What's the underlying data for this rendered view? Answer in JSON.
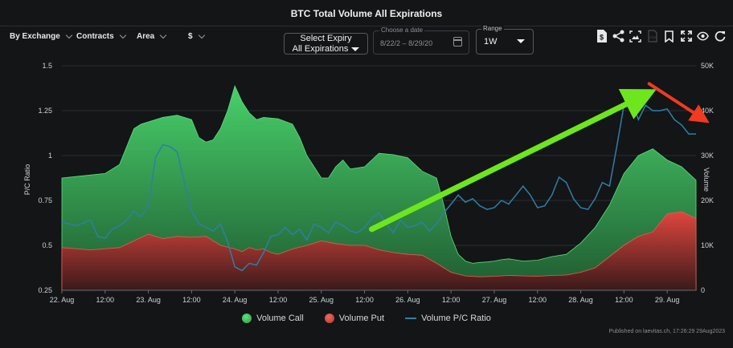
{
  "header": {
    "title": "BTC Total Volume All Expirations"
  },
  "filters": [
    {
      "label": "By Exchange"
    },
    {
      "label": "Contracts"
    },
    {
      "label": "Area"
    },
    {
      "label": "$"
    }
  ],
  "expiry": {
    "line1": "Select Expiry",
    "line2": "All Expirations"
  },
  "date_picker": {
    "legend": "Choose a date",
    "start": "8/22/2",
    "separator": "–",
    "end": "8/29/20"
  },
  "range": {
    "legend": "Range",
    "value": "1W"
  },
  "toolbar_icons": [
    "dollar-file-icon",
    "share-icon",
    "image-icon",
    "csv-icon",
    "bookmark-icon",
    "fullscreen-icon",
    "eye-icon",
    "refresh-icon"
  ],
  "legend": {
    "call": "Volume Call",
    "put": "Volume Put",
    "ratio": "Volume P/C Ratio"
  },
  "footer": {
    "published": "Published on laevitas.ch, 17:26:29 29Aug2023"
  },
  "colors": {
    "call": "#3fb95a",
    "put": "#d6453d",
    "ratio": "#2e7fa8",
    "arrow_green": "#6ee61e",
    "arrow_red": "#f03a22"
  },
  "chart_data": {
    "type": "area",
    "ylabel": "P/C Ratio",
    "y2label": "Volume",
    "ylim": [
      0.25,
      1.5
    ],
    "y2lim": [
      0,
      50000
    ],
    "yticks": [
      0.25,
      0.5,
      0.75,
      1,
      1.25,
      1.5
    ],
    "yticks_labels": [
      "0.25",
      "0.5",
      "0.75",
      "1",
      "1.25",
      "1.5"
    ],
    "y2ticks": [
      0,
      10000,
      20000,
      30000,
      40000,
      50000
    ],
    "y2ticks_labels": [
      "0",
      "10K",
      "20K",
      "30K",
      "40K",
      "50K"
    ],
    "xticks_labels": [
      "22. Aug",
      "12:00",
      "23. Aug",
      "12:00",
      "24. Aug",
      "12:00",
      "25. Aug",
      "12:00",
      "26. Aug",
      "12:00",
      "27. Aug",
      "12:00",
      "28. Aug",
      "12:00",
      "29. Aug"
    ],
    "x_hours_span": [
      0,
      176
    ],
    "series": [
      {
        "name": "Volume Call",
        "kind": "area",
        "axis": "volume",
        "x": [
          0,
          6,
          12,
          16,
          18,
          20,
          22,
          24,
          28,
          32,
          36,
          38,
          40,
          42,
          44,
          46,
          48,
          50,
          52,
          54,
          56,
          60,
          64,
          66,
          68,
          70,
          72,
          74,
          76,
          78,
          80,
          84,
          88,
          92,
          96,
          100,
          104,
          106,
          108,
          110,
          112,
          114,
          116,
          118,
          120,
          122,
          124,
          128,
          132,
          136,
          140,
          144,
          148,
          152,
          156,
          160,
          164,
          168,
          172,
          176
        ],
        "values": [
          25000,
          25500,
          26000,
          28000,
          32000,
          36000,
          37000,
          37500,
          38500,
          39000,
          38000,
          34000,
          33000,
          33500,
          36000,
          40000,
          45500,
          42000,
          39500,
          38000,
          38500,
          38200,
          37000,
          34000,
          30000,
          27500,
          25000,
          25000,
          27500,
          29000,
          27000,
          27500,
          30500,
          30200,
          29500,
          26500,
          25000,
          19000,
          12000,
          8000,
          6500,
          6000,
          6200,
          6300,
          6500,
          6800,
          7000,
          6500,
          6700,
          7500,
          8000,
          10500,
          14000,
          19000,
          26000,
          30000,
          31500,
          29000,
          27500,
          24500
        ]
      },
      {
        "name": "Volume Put",
        "kind": "area",
        "axis": "volume",
        "x": [
          0,
          8,
          16,
          20,
          24,
          28,
          32,
          36,
          40,
          44,
          48,
          50,
          52,
          54,
          56,
          58,
          60,
          64,
          68,
          70,
          72,
          76,
          80,
          84,
          88,
          92,
          96,
          100,
          104,
          108,
          112,
          116,
          120,
          124,
          128,
          132,
          136,
          140,
          144,
          148,
          152,
          156,
          160,
          164,
          168,
          172,
          176
        ],
        "values": [
          9500,
          9000,
          9500,
          11000,
          12500,
          11500,
          12000,
          11800,
          12000,
          10000,
          9200,
          8600,
          9500,
          9000,
          9200,
          8400,
          8000,
          9200,
          10000,
          10500,
          11000,
          10400,
          10000,
          10000,
          9000,
          8400,
          8000,
          7800,
          6000,
          4000,
          3200,
          3000,
          3100,
          3300,
          3200,
          3100,
          3300,
          3400,
          4000,
          5000,
          7500,
          10000,
          12000,
          13000,
          17000,
          17500,
          16000
        ]
      },
      {
        "name": "Volume P/C Ratio",
        "kind": "line",
        "axis": "ratio",
        "x": [
          0,
          4,
          8,
          10,
          12,
          14,
          16,
          18,
          20,
          22,
          24,
          26,
          28,
          30,
          32,
          34,
          36,
          38,
          40,
          42,
          44,
          46,
          48,
          50,
          52,
          54,
          56,
          58,
          60,
          62,
          64,
          66,
          68,
          70,
          72,
          74,
          76,
          78,
          80,
          82,
          84,
          86,
          88,
          90,
          92,
          94,
          96,
          98,
          100,
          102,
          104,
          106,
          108,
          110,
          112,
          114,
          116,
          118,
          120,
          122,
          124,
          126,
          128,
          130,
          132,
          134,
          136,
          138,
          140,
          142,
          144,
          146,
          148,
          150,
          152,
          154,
          156,
          158,
          160,
          162,
          164,
          166,
          168,
          170,
          172,
          174,
          176
        ],
        "values": [
          0.63,
          0.61,
          0.64,
          0.55,
          0.54,
          0.59,
          0.61,
          0.64,
          0.69,
          0.66,
          0.72,
          0.99,
          1.06,
          1.05,
          1.02,
          0.85,
          0.69,
          0.62,
          0.6,
          0.58,
          0.62,
          0.52,
          0.38,
          0.36,
          0.4,
          0.39,
          0.46,
          0.55,
          0.56,
          0.6,
          0.56,
          0.59,
          0.53,
          0.62,
          0.6,
          0.57,
          0.63,
          0.61,
          0.58,
          0.57,
          0.6,
          0.65,
          0.68,
          0.62,
          0.57,
          0.64,
          0.6,
          0.61,
          0.63,
          0.58,
          0.62,
          0.68,
          0.73,
          0.78,
          0.74,
          0.76,
          0.72,
          0.7,
          0.71,
          0.75,
          0.73,
          0.78,
          0.83,
          0.78,
          0.71,
          0.72,
          0.78,
          0.88,
          0.85,
          0.76,
          0.71,
          0.7,
          0.76,
          0.85,
          0.83,
          1.05,
          1.28,
          1.31,
          1.2,
          1.28,
          1.25,
          1.25,
          1.26,
          1.2,
          1.17,
          1.12,
          1.12
        ]
      }
    ],
    "annotations": [
      {
        "kind": "arrow",
        "color": "green",
        "from": [
          86,
          0.59
        ],
        "to": [
          158,
          1.3
        ]
      },
      {
        "kind": "arrow",
        "color": "red",
        "from": [
          163,
          1.4
        ],
        "to": [
          176,
          1.23
        ]
      }
    ]
  }
}
